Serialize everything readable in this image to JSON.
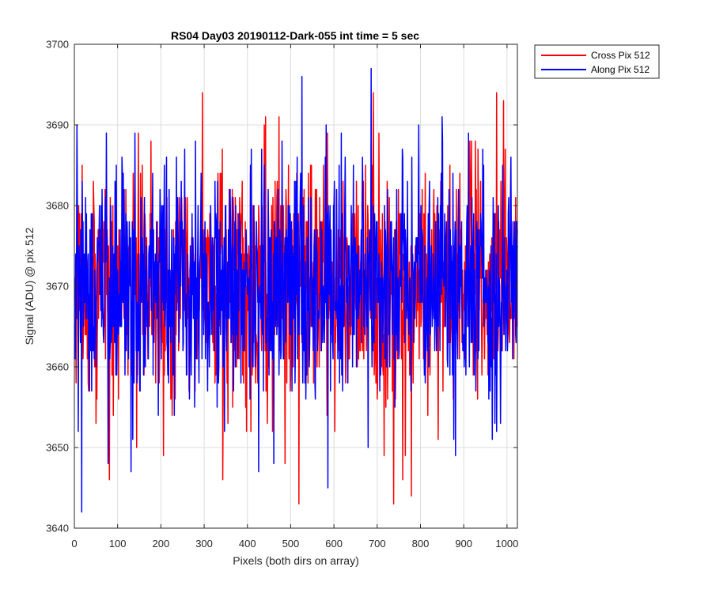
{
  "chart_data": {
    "type": "line",
    "title": "RS04 Day03 20190112-Dark-055 int time = 5 sec",
    "xlabel": "Pixels (both dirs on array)",
    "ylabel": "Signal (ADU) @ pix 512",
    "xlim": [
      0,
      1024
    ],
    "ylim": [
      3640,
      3700
    ],
    "xticks": [
      0,
      100,
      200,
      300,
      400,
      500,
      600,
      700,
      800,
      900,
      1000
    ],
    "yticks": [
      3640,
      3650,
      3660,
      3670,
      3680,
      3690,
      3700
    ],
    "grid": true,
    "legend_position": "outside-top-right",
    "series": [
      {
        "name": "Cross Pix 512",
        "color": "#ff0000",
        "mean": 3670,
        "n_points": 1024,
        "notable_points": [
          {
            "x": 80,
            "y": 3646
          },
          {
            "x": 205,
            "y": 3649
          },
          {
            "x": 295,
            "y": 3694
          },
          {
            "x": 690,
            "y": 3694
          },
          {
            "x": 715,
            "y": 3649
          },
          {
            "x": 737,
            "y": 3643
          },
          {
            "x": 778,
            "y": 3644
          },
          {
            "x": 975,
            "y": 3694
          }
        ]
      },
      {
        "name": "Along Pix 512",
        "color": "#0000ff",
        "mean": 3670,
        "n_points": 1024,
        "notable_points": [
          {
            "x": 5,
            "y": 3690
          },
          {
            "x": 8,
            "y": 3652
          },
          {
            "x": 130,
            "y": 3647
          },
          {
            "x": 425,
            "y": 3692
          },
          {
            "x": 425,
            "y": 3647
          },
          {
            "x": 525,
            "y": 3696
          },
          {
            "x": 585,
            "y": 3645
          },
          {
            "x": 685,
            "y": 3697
          },
          {
            "x": 880,
            "y": 3649
          },
          {
            "x": 965,
            "y": 3651
          }
        ]
      }
    ]
  }
}
